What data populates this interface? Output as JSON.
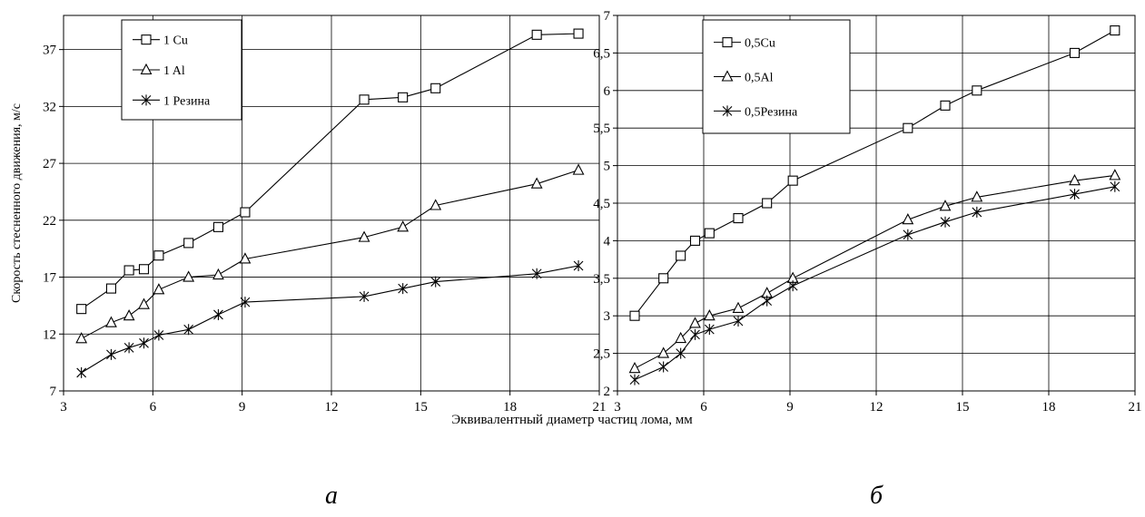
{
  "figure": {
    "shared_xlabel": "Эквивалентный диаметр частиц лома, мм"
  },
  "chart_data": [
    {
      "type": "line",
      "panel_label": "а",
      "title": "",
      "xlabel": "",
      "ylabel": "Скорость стесненного движения, м/с",
      "xlim": [
        3,
        21
      ],
      "ylim": [
        7,
        40
      ],
      "xticks": [
        "3",
        "6",
        "9",
        "12",
        "15",
        "18",
        "21"
      ],
      "yticks": [
        "7",
        "12",
        "17",
        "22",
        "27",
        "32",
        "37"
      ],
      "grid": true,
      "legend_position": "top-left",
      "series": [
        {
          "name": "1 Cu",
          "marker": "square",
          "x": [
            3.6,
            4.6,
            5.2,
            5.7,
            6.2,
            7.2,
            8.2,
            9.1,
            13.1,
            14.4,
            15.5,
            18.9,
            20.3
          ],
          "y": [
            14.2,
            16.0,
            17.6,
            17.7,
            18.9,
            20.0,
            21.4,
            22.7,
            32.6,
            32.8,
            33.6,
            38.3,
            38.4
          ]
        },
        {
          "name": "1 Al",
          "marker": "triangle",
          "x": [
            3.6,
            4.6,
            5.2,
            5.7,
            6.2,
            7.2,
            8.2,
            9.1,
            13.1,
            14.4,
            15.5,
            18.9,
            20.3
          ],
          "y": [
            11.6,
            13.0,
            13.6,
            14.6,
            15.9,
            17.0,
            17.2,
            18.6,
            20.5,
            21.4,
            23.3,
            25.2,
            26.4
          ]
        },
        {
          "name": "1 Резина",
          "marker": "asterisk",
          "x": [
            3.6,
            4.6,
            5.2,
            5.7,
            6.2,
            7.2,
            8.2,
            9.1,
            13.1,
            14.4,
            15.5,
            18.9,
            20.3
          ],
          "y": [
            8.6,
            10.2,
            10.8,
            11.2,
            11.9,
            12.4,
            13.7,
            14.8,
            15.3,
            16.0,
            16.6,
            17.3,
            18.0
          ]
        }
      ]
    },
    {
      "type": "line",
      "panel_label": "б",
      "title": "",
      "xlabel": "",
      "ylabel": "",
      "xlim": [
        3,
        21
      ],
      "ylim": [
        2,
        7
      ],
      "xticks": [
        "3",
        "6",
        "9",
        "12",
        "15",
        "18",
        "21"
      ],
      "yticks": [
        "2",
        "2,5",
        "3",
        "3,5",
        "4",
        "4,5",
        "5",
        "5,5",
        "6",
        "6,5",
        "7"
      ],
      "grid": true,
      "legend_position": "top-left",
      "series": [
        {
          "name": "0,5Cu",
          "marker": "square",
          "x": [
            3.6,
            4.6,
            5.2,
            5.7,
            6.2,
            7.2,
            8.2,
            9.1,
            13.1,
            14.4,
            15.5,
            18.9,
            20.3
          ],
          "y": [
            3.0,
            3.5,
            3.8,
            4.0,
            4.1,
            4.3,
            4.5,
            4.8,
            5.5,
            5.8,
            6.0,
            6.5,
            6.8
          ]
        },
        {
          "name": "0,5Al",
          "marker": "triangle",
          "x": [
            3.6,
            4.6,
            5.2,
            5.7,
            6.2,
            7.2,
            8.2,
            9.1,
            13.1,
            14.4,
            15.5,
            18.9,
            20.3
          ],
          "y": [
            2.3,
            2.5,
            2.7,
            2.9,
            3.0,
            3.1,
            3.3,
            3.5,
            4.28,
            4.46,
            4.58,
            4.8,
            4.87
          ]
        },
        {
          "name": "0,5Резина",
          "marker": "asterisk",
          "x": [
            3.6,
            4.6,
            5.2,
            5.7,
            6.2,
            7.2,
            8.2,
            9.1,
            13.1,
            14.4,
            15.5,
            18.9,
            20.3
          ],
          "y": [
            2.15,
            2.32,
            2.5,
            2.75,
            2.82,
            2.93,
            3.2,
            3.4,
            4.08,
            4.25,
            4.38,
            4.62,
            4.72
          ]
        }
      ]
    }
  ]
}
